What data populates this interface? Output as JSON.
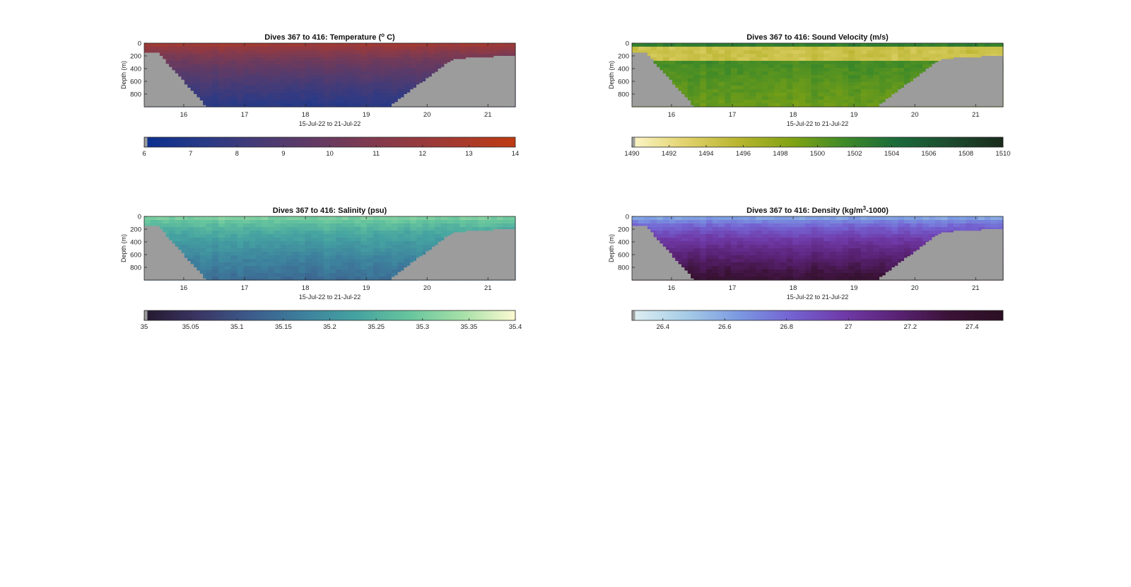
{
  "figure": {
    "background": "#ffffff",
    "land_color": "#9c9c9c"
  },
  "chart_data": [
    {
      "id": "temperature",
      "type": "heatmap",
      "title": "Dives 367 to 416: Temperature (",
      "title_super": "o",
      "title_end": " C)",
      "xlabel": "15-Jul-22 to 21-Jul-22",
      "ylabel": "Depth (m)",
      "x_ticks": [
        "16",
        "17",
        "18",
        "19",
        "20",
        "21"
      ],
      "x_tick_values": [
        16,
        17,
        18,
        19,
        20,
        21
      ],
      "xlim": [
        15.35,
        21.45
      ],
      "y_ticks": [
        "0",
        "200",
        "400",
        "600",
        "800"
      ],
      "y_tick_values": [
        0,
        200,
        400,
        600,
        800
      ],
      "ylim": [
        1000,
        0
      ],
      "colorbar": {
        "range": [
          6,
          14
        ],
        "ticks": [
          "6",
          "7",
          "8",
          "9",
          "10",
          "11",
          "12",
          "13",
          "14"
        ],
        "tick_values": [
          6,
          7,
          8,
          9,
          10,
          11,
          12,
          13,
          14
        ],
        "colors": [
          "#0b2f8f",
          "#2a3a86",
          "#4b3b73",
          "#6a3a5e",
          "#8a3a48",
          "#a43a30",
          "#be3a12"
        ]
      },
      "surface_value": 13.2,
      "deep_value": 7.2,
      "band_value": null,
      "grid": false
    },
    {
      "id": "sound-velocity",
      "type": "heatmap",
      "title": "Dives 367 to 416: Sound Velocity (m/s)",
      "title_super": "",
      "title_end": "",
      "xlabel": "15-Jul-22 to 21-Jul-22",
      "ylabel": "Depth (m)",
      "x_ticks": [
        "16",
        "17",
        "18",
        "19",
        "20",
        "21"
      ],
      "x_tick_values": [
        16,
        17,
        18,
        19,
        20,
        21
      ],
      "xlim": [
        15.35,
        21.45
      ],
      "y_ticks": [
        "0",
        "200",
        "400",
        "600",
        "800"
      ],
      "y_tick_values": [
        0,
        200,
        400,
        600,
        800
      ],
      "ylim": [
        1000,
        0
      ],
      "colorbar": {
        "range": [
          1490,
          1510
        ],
        "ticks": [
          "1490",
          "1492",
          "1494",
          "1496",
          "1498",
          "1500",
          "1502",
          "1504",
          "1506",
          "1508",
          "1510"
        ],
        "tick_values": [
          1490,
          1492,
          1494,
          1496,
          1498,
          1500,
          1502,
          1504,
          1506,
          1508,
          1510
        ],
        "colors": [
          "#fbf5c8",
          "#e2d36e",
          "#b9b531",
          "#82a313",
          "#3f8a28",
          "#1a6a3a",
          "#1c4b2e",
          "#1a2a1c"
        ]
      },
      "surface_value": 1503,
      "deep_value": 1499.5,
      "band_value": 1494.5,
      "grid": false
    },
    {
      "id": "salinity",
      "type": "heatmap",
      "title": "Dives 367 to 416: Salinity (psu)",
      "title_super": "",
      "title_end": "",
      "xlabel": "15-Jul-22 to 21-Jul-22",
      "ylabel": "Depth (m)",
      "x_ticks": [
        "16",
        "17",
        "18",
        "19",
        "20",
        "21"
      ],
      "x_tick_values": [
        16,
        17,
        18,
        19,
        20,
        21
      ],
      "xlim": [
        15.35,
        21.45
      ],
      "y_ticks": [
        "0",
        "200",
        "400",
        "600",
        "800"
      ],
      "y_tick_values": [
        0,
        200,
        400,
        600,
        800
      ],
      "ylim": [
        1000,
        0
      ],
      "colorbar": {
        "range": [
          35,
          35.4
        ],
        "ticks": [
          "35",
          "35.05",
          "35.1",
          "35.15",
          "35.2",
          "35.25",
          "35.3",
          "35.35",
          "35.4"
        ],
        "tick_values": [
          35,
          35.05,
          35.1,
          35.15,
          35.2,
          35.25,
          35.3,
          35.35,
          35.4
        ],
        "colors": [
          "#24182e",
          "#3a3563",
          "#3c5b8c",
          "#3d809d",
          "#45a3a1",
          "#67c59d",
          "#a6e0a8",
          "#fcfad0"
        ]
      },
      "surface_value": 35.33,
      "deep_value": 35.14,
      "band_value": null,
      "grid": false
    },
    {
      "id": "density",
      "type": "heatmap",
      "title": "Dives 367 to 416: Density (kg/m",
      "title_super": "3",
      "title_end": "-1000)",
      "xlabel": "15-Jul-22 to 21-Jul-22",
      "ylabel": "Depth (m)",
      "x_ticks": [
        "16",
        "17",
        "18",
        "19",
        "20",
        "21"
      ],
      "x_tick_values": [
        16,
        17,
        18,
        19,
        20,
        21
      ],
      "xlim": [
        15.35,
        21.45
      ],
      "y_ticks": [
        "0",
        "200",
        "400",
        "600",
        "800"
      ],
      "y_tick_values": [
        0,
        200,
        400,
        600,
        800
      ],
      "ylim": [
        1000,
        0
      ],
      "colorbar": {
        "range": [
          26.3,
          27.5
        ],
        "ticks": [
          "26.4",
          "26.6",
          "26.8",
          "27",
          "27.2",
          "27.4"
        ],
        "tick_values": [
          26.4,
          26.6,
          26.8,
          27,
          27.2,
          27.4
        ],
        "colors": [
          "#dff0f2",
          "#a7cde6",
          "#7b9ae2",
          "#7463d2",
          "#6f3aa8",
          "#5a2275",
          "#3a1236",
          "#2b0f22"
        ]
      },
      "surface_value": 26.5,
      "deep_value": 27.35,
      "band_value": null,
      "grid": false
    }
  ]
}
